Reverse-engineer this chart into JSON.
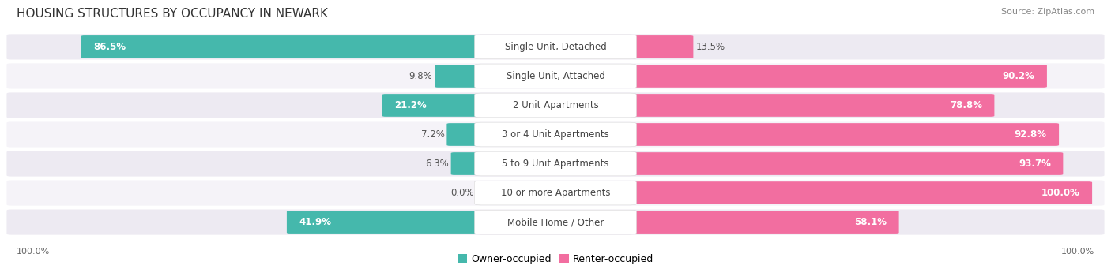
{
  "title": "HOUSING STRUCTURES BY OCCUPANCY IN NEWARK",
  "source": "Source: ZipAtlas.com",
  "categories": [
    "Single Unit, Detached",
    "Single Unit, Attached",
    "2 Unit Apartments",
    "3 or 4 Unit Apartments",
    "5 to 9 Unit Apartments",
    "10 or more Apartments",
    "Mobile Home / Other"
  ],
  "owner_pct": [
    86.5,
    9.8,
    21.2,
    7.2,
    6.3,
    0.0,
    41.9
  ],
  "renter_pct": [
    13.5,
    90.2,
    78.8,
    92.8,
    93.7,
    100.0,
    58.1
  ],
  "owner_color": "#45B8AC",
  "renter_color": "#F26EA0",
  "owner_color_light": "#A8D8D5",
  "renter_color_light": "#F9C0D8",
  "pill_bg": "#EDEAF2",
  "row_alt_bg": "#F5F3F8",
  "label_bg": "#FFFFFF",
  "title_fontsize": 11,
  "label_fontsize": 8.5,
  "pct_fontsize": 8.5,
  "tick_fontsize": 8,
  "source_fontsize": 8,
  "figsize": [
    14.06,
    3.41
  ],
  "dpi": 100
}
